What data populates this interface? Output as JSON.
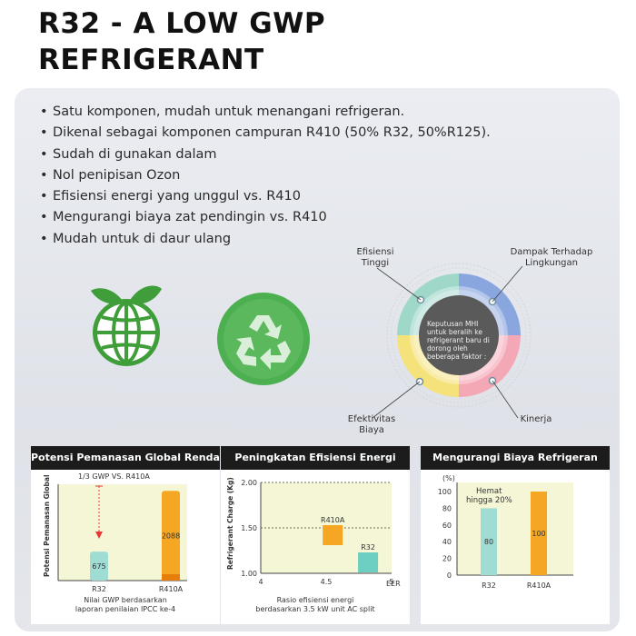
{
  "title_line1": "R32 - A LOW GWP",
  "title_line2": "REFRIGERANT",
  "bullets": [
    "Satu komponen, mudah untuk menangani refrigeran.",
    "Dikenal sebagai komponen campuran R410 (50% R32, 50%R125).",
    "Sudah di gunakan dalam",
    "Nol penipisan Ozon",
    "Efisiensi energi yang unggul vs. R410",
    "Mengurangi biaya zat pendingin vs. R410",
    "Mudah untuk di daur ulang"
  ],
  "wheel": {
    "label_top_left": "Efisiensi Tinggi",
    "label_top_right": "Dampak Terhadap Lingkungan",
    "label_bottom_left": "Efektivitas Biaya",
    "label_bottom_right": "Kinerja",
    "center_text": "Keputusan MHI untuk beralih ke refrigerant baru di dorong oleh beberapa faktor :",
    "colors": {
      "teal": "#9fd8c9",
      "blue": "#8aa6df",
      "yellow": "#f5e27a",
      "pink": "#f4a7b5"
    }
  },
  "cards": {
    "gwp": {
      "heading": "Potensi Pemanasan Global Rendah",
      "note": "1/3 GWP VS. R410A",
      "ylabel": "Potensi Pemanasan Global",
      "caption_line1": "Nilai GWP berdasarkan",
      "caption_line2": "laporan penilaian IPCC ke-4"
    },
    "eff": {
      "heading": "Peningkatan Efisiensi Energi",
      "ylabel": "Refrigerant Charge (Kg)",
      "xlabel": "EER",
      "caption_line1": "Rasio efisiensi energi",
      "caption_line2": "berdasarkan 3.5 kW unit AC split"
    },
    "cost": {
      "heading": "Mengurangi Biaya Refrigeran",
      "unit": "(%)",
      "annotation_line1": "Hemat",
      "annotation_line2": "hingga 20%"
    }
  },
  "chart_data": [
    {
      "type": "bar",
      "categories": [
        "R32",
        "R410A"
      ],
      "values": [
        675,
        2088
      ],
      "ylabel": "Potensi Pemanasan Global",
      "colors": [
        "#9fdcd3",
        "#f5a623"
      ]
    },
    {
      "type": "scatter",
      "xlabel": "EER",
      "ylabel": "Refrigerant Charge (Kg)",
      "xlim": [
        4,
        5
      ],
      "ylim": [
        1.0,
        2.0
      ],
      "xticks": [
        "4",
        "4.5",
        "5"
      ],
      "yticks": [
        "1.00",
        "1.50",
        "2.00"
      ],
      "points": [
        {
          "label": "R410A",
          "x": 4.55,
          "y": 1.42,
          "color": "#f5a623"
        },
        {
          "label": "R32",
          "x": 4.82,
          "y": 1.12,
          "color": "#6ccfc2"
        }
      ]
    },
    {
      "type": "bar",
      "categories": [
        "R32",
        "R410A"
      ],
      "values": [
        80,
        100
      ],
      "ylim": [
        0,
        100
      ],
      "yticks": [
        "100",
        "80",
        "60",
        "40",
        "20",
        "0"
      ],
      "colors": [
        "#9fdcd3",
        "#f5a623"
      ]
    }
  ]
}
